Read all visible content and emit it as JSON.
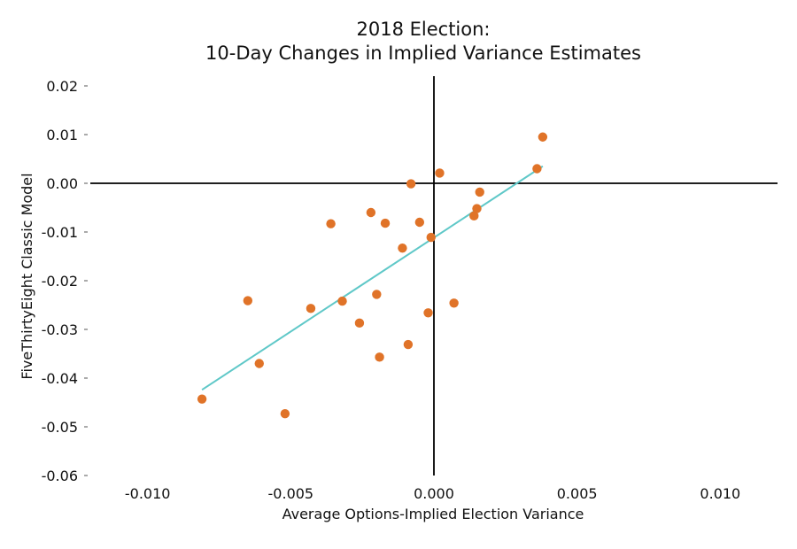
{
  "chart_data": {
    "type": "scatter",
    "title_lines": [
      "2018 Election:",
      "10-Day Changes in Implied Variance Estimates"
    ],
    "xlabel": "Average Options-Implied Election Variance",
    "ylabel": "FiveThirtyEight Classic Model",
    "xlim": [
      -0.012,
      0.012
    ],
    "ylim": [
      -0.06,
      0.022
    ],
    "x_ticks": [
      -0.01,
      -0.005,
      0.0,
      0.005,
      0.01
    ],
    "x_tick_labels": [
      "-0.010",
      "-0.005",
      "0.000",
      "0.005",
      "0.010"
    ],
    "y_ticks": [
      0.02,
      0.01,
      0.0,
      -0.01,
      -0.02,
      -0.03,
      -0.04,
      -0.05,
      -0.06
    ],
    "y_tick_labels": [
      "0.02",
      "0.01",
      "0.00",
      "-0.01",
      "-0.02",
      "-0.03",
      "-0.04",
      "-0.05",
      "-0.06"
    ],
    "grid": false,
    "colors": {
      "points": "#e07328",
      "fit_line": "#5fc8c8",
      "axes": "#000000"
    },
    "points": [
      {
        "x": 0.0038,
        "y": 0.0095
      },
      {
        "x": 0.0036,
        "y": 0.003
      },
      {
        "x": 0.0002,
        "y": 0.0021
      },
      {
        "x": -0.0008,
        "y": -0.0001
      },
      {
        "x": 0.0016,
        "y": -0.0018
      },
      {
        "x": 0.0015,
        "y": -0.0052
      },
      {
        "x": 0.0014,
        "y": -0.0067
      },
      {
        "x": -0.0022,
        "y": -0.006
      },
      {
        "x": -0.0036,
        "y": -0.0083
      },
      {
        "x": -0.0017,
        "y": -0.0082
      },
      {
        "x": -0.0005,
        "y": -0.008
      },
      {
        "x": -0.0001,
        "y": -0.0111
      },
      {
        "x": -0.0011,
        "y": -0.0133
      },
      {
        "x": -0.002,
        "y": -0.0228
      },
      {
        "x": -0.0032,
        "y": -0.0242
      },
      {
        "x": -0.0065,
        "y": -0.0241
      },
      {
        "x": -0.0043,
        "y": -0.0257
      },
      {
        "x": -0.0002,
        "y": -0.0266
      },
      {
        "x": 0.0007,
        "y": -0.0246
      },
      {
        "x": -0.0026,
        "y": -0.0287
      },
      {
        "x": -0.0009,
        "y": -0.0331
      },
      {
        "x": -0.0019,
        "y": -0.0357
      },
      {
        "x": -0.0061,
        "y": -0.037
      },
      {
        "x": -0.0081,
        "y": -0.0443
      },
      {
        "x": -0.0052,
        "y": -0.0473
      }
    ],
    "fit_line": {
      "x": [
        -0.0081,
        0.0038
      ],
      "y": [
        -0.0424,
        0.0035
      ]
    }
  }
}
